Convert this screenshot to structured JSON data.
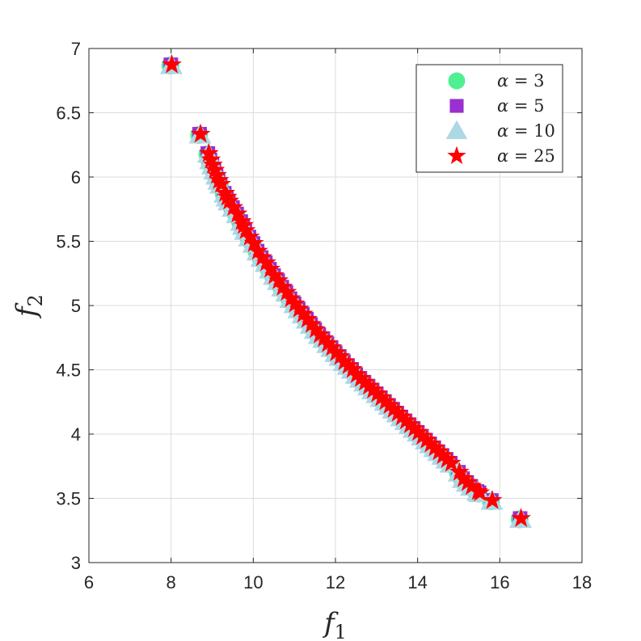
{
  "chart_data": {
    "type": "scatter",
    "title": "",
    "xlabel": "f",
    "xlabel_sub": "1",
    "ylabel": "f",
    "ylabel_sub": "2",
    "xlim": [
      6,
      18
    ],
    "ylim": [
      3,
      7
    ],
    "xticks": [
      "6",
      "8",
      "10",
      "12",
      "14",
      "16",
      "18"
    ],
    "yticks": [
      "3",
      "3.5",
      "4",
      "4.5",
      "5",
      "5.5",
      "6",
      "6.5",
      "7"
    ],
    "grid": true,
    "legend_position": "top-right",
    "series": [
      {
        "name": "α = 3",
        "legend_var": "α",
        "legend_val": "= 3",
        "marker": "circle",
        "color": "#4ef091"
      },
      {
        "name": "α = 5",
        "legend_var": "α",
        "legend_val": "= 5",
        "marker": "square",
        "color": "#9a30cf"
      },
      {
        "name": "α = 10",
        "legend_var": "α",
        "legend_val": "= 10",
        "marker": "triangle",
        "color": "#add8e6"
      },
      {
        "name": "α = 25",
        "legend_var": "α",
        "legend_val": "= 25",
        "marker": "star",
        "color": "#ff0000"
      }
    ],
    "points": [
      [
        8.0,
        6.87
      ],
      [
        8.7,
        6.33
      ],
      [
        8.9,
        6.18
      ],
      [
        8.95,
        6.13
      ],
      [
        9.0,
        6.09
      ],
      [
        9.05,
        6.05
      ],
      [
        9.1,
        6.01
      ],
      [
        9.15,
        5.97
      ],
      [
        9.2,
        5.94
      ],
      [
        9.3,
        5.87
      ],
      [
        9.35,
        5.84
      ],
      [
        9.4,
        5.81
      ],
      [
        9.5,
        5.76
      ],
      [
        9.6,
        5.71
      ],
      [
        9.7,
        5.65
      ],
      [
        9.75,
        5.62
      ],
      [
        9.8,
        5.58
      ],
      [
        9.9,
        5.53
      ],
      [
        10.0,
        5.48
      ],
      [
        10.1,
        5.42
      ],
      [
        10.2,
        5.37
      ],
      [
        10.3,
        5.33
      ],
      [
        10.4,
        5.28
      ],
      [
        10.5,
        5.23
      ],
      [
        10.6,
        5.19
      ],
      [
        10.7,
        5.14
      ],
      [
        10.8,
        5.1
      ],
      [
        10.9,
        5.05
      ],
      [
        11.0,
        5.01
      ],
      [
        11.1,
        4.97
      ],
      [
        11.2,
        4.93
      ],
      [
        11.3,
        4.89
      ],
      [
        11.4,
        4.85
      ],
      [
        11.5,
        4.81
      ],
      [
        11.6,
        4.77
      ],
      [
        11.7,
        4.74
      ],
      [
        11.8,
        4.7
      ],
      [
        11.9,
        4.67
      ],
      [
        12.0,
        4.63
      ],
      [
        12.1,
        4.6
      ],
      [
        12.2,
        4.56
      ],
      [
        12.3,
        4.53
      ],
      [
        12.4,
        4.5
      ],
      [
        12.5,
        4.46
      ],
      [
        12.6,
        4.43
      ],
      [
        12.7,
        4.4
      ],
      [
        12.8,
        4.37
      ],
      [
        12.9,
        4.34
      ],
      [
        13.0,
        4.31
      ],
      [
        13.1,
        4.28
      ],
      [
        13.2,
        4.25
      ],
      [
        13.3,
        4.22
      ],
      [
        13.4,
        4.19
      ],
      [
        13.5,
        4.16
      ],
      [
        13.6,
        4.13
      ],
      [
        13.7,
        4.1
      ],
      [
        13.8,
        4.07
      ],
      [
        13.9,
        4.04
      ],
      [
        14.0,
        4.01
      ],
      [
        14.1,
        3.98
      ],
      [
        14.2,
        3.95
      ],
      [
        14.3,
        3.92
      ],
      [
        14.4,
        3.89
      ],
      [
        14.5,
        3.86
      ],
      [
        14.6,
        3.83
      ],
      [
        14.7,
        3.8
      ],
      [
        14.8,
        3.77
      ],
      [
        15.0,
        3.7
      ],
      [
        15.1,
        3.65
      ],
      [
        15.2,
        3.62
      ],
      [
        15.3,
        3.59
      ],
      [
        15.45,
        3.55
      ],
      [
        15.5,
        3.54
      ],
      [
        15.8,
        3.48
      ],
      [
        16.5,
        3.34
      ]
    ]
  }
}
